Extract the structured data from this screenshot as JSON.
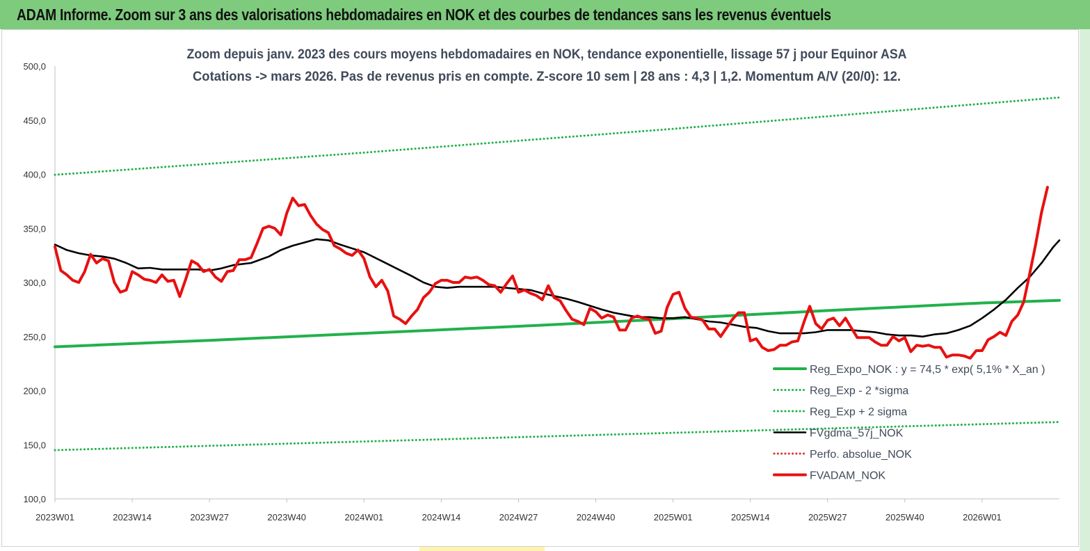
{
  "header": {
    "title": "ADAM Informe. Zoom sur 3 ans des valorisations hebdomadaires en NOK et des courbes de tendances sans les revenus éventuels"
  },
  "chart_data": {
    "type": "line",
    "title_line1": "Zoom depuis janv. 2023 des cours moyens hebdomadaires en NOK, tendance exponentielle, lissage 57 j pour Equinor ASA",
    "title_line2": "Cotations -> mars 2026. Pas de revenus pris en compte. Z-score 10 sem | 28 ans : 4,3 | 1,2. Momentum A/V (20/0): 12.",
    "ylim": [
      100,
      500
    ],
    "y_ticks": [
      "500,0",
      "450,0",
      "400,0",
      "350,0",
      "300,0",
      "250,0",
      "200,0",
      "150,0",
      "100,0"
    ],
    "x_range": [
      0,
      169
    ],
    "x_ticks": [
      {
        "label": "2023W01",
        "x": 0
      },
      {
        "label": "2023W14",
        "x": 13
      },
      {
        "label": "2023W27",
        "x": 26
      },
      {
        "label": "2023W40",
        "x": 39
      },
      {
        "label": "2024W01",
        "x": 52
      },
      {
        "label": "2024W14",
        "x": 65
      },
      {
        "label": "2024W27",
        "x": 78
      },
      {
        "label": "2024W40",
        "x": 91
      },
      {
        "label": "2025W01",
        "x": 104
      },
      {
        "label": "2025W14",
        "x": 117
      },
      {
        "label": "2025W27",
        "x": 130
      },
      {
        "label": "2025W40",
        "x": 143
      },
      {
        "label": "2026W01",
        "x": 156
      }
    ],
    "grid": false,
    "legend_position": "bottom-right",
    "series": [
      {
        "name": "Reg_Expo_NOK : y = 74,5 * exp( 5,1% *  X_an )",
        "color": "#22b14c",
        "style": "solid-thick",
        "points": [
          [
            0,
            240.5
          ],
          [
            26,
            246.5
          ],
          [
            52,
            253
          ],
          [
            78,
            259.5
          ],
          [
            104,
            266.5
          ],
          [
            130,
            274
          ],
          [
            156,
            281
          ],
          [
            169,
            283.5
          ]
        ]
      },
      {
        "name": "Reg_Exp - 2 *sigma",
        "color": "#22b14c",
        "style": "dotted",
        "points": [
          [
            0,
            145
          ],
          [
            52,
            153
          ],
          [
            104,
            161
          ],
          [
            169,
            171
          ]
        ]
      },
      {
        "name": "Reg_Exp + 2 sigma",
        "color": "#22b14c",
        "style": "dotted",
        "points": [
          [
            0,
            399.5
          ],
          [
            52,
            420
          ],
          [
            104,
            442
          ],
          [
            169,
            471
          ]
        ]
      },
      {
        "name": "FVgdma_57j_NOK",
        "color": "#000000",
        "style": "solid",
        "points": [
          [
            0,
            335
          ],
          [
            2,
            330
          ],
          [
            4,
            327
          ],
          [
            6,
            325
          ],
          [
            8,
            324
          ],
          [
            10,
            322
          ],
          [
            12,
            318
          ],
          [
            14,
            313
          ],
          [
            16,
            313.5
          ],
          [
            18,
            312
          ],
          [
            21,
            312
          ],
          [
            24,
            312
          ],
          [
            26,
            311
          ],
          [
            28,
            313
          ],
          [
            30,
            316
          ],
          [
            33,
            318
          ],
          [
            36,
            324
          ],
          [
            38,
            330
          ],
          [
            40,
            334
          ],
          [
            42,
            337
          ],
          [
            44,
            340
          ],
          [
            46,
            339
          ],
          [
            48,
            335
          ],
          [
            52,
            328
          ],
          [
            56,
            317
          ],
          [
            60,
            306
          ],
          [
            62,
            300
          ],
          [
            64,
            296
          ],
          [
            66,
            295
          ],
          [
            68,
            296
          ],
          [
            70,
            296
          ],
          [
            74,
            296
          ],
          [
            76,
            295
          ],
          [
            80,
            293
          ],
          [
            82,
            290
          ],
          [
            86,
            285
          ],
          [
            88,
            282
          ],
          [
            92,
            275
          ],
          [
            94,
            272
          ],
          [
            96,
            270
          ],
          [
            98,
            268
          ],
          [
            100,
            268
          ],
          [
            102,
            267
          ],
          [
            104,
            267
          ],
          [
            106,
            268
          ],
          [
            108,
            266
          ],
          [
            110,
            264
          ],
          [
            112,
            263
          ],
          [
            114,
            261
          ],
          [
            116,
            259
          ],
          [
            118,
            258
          ],
          [
            120,
            255
          ],
          [
            122,
            253
          ],
          [
            126,
            253
          ],
          [
            128,
            254
          ],
          [
            130,
            256
          ],
          [
            132,
            256
          ],
          [
            134,
            256
          ],
          [
            136,
            255
          ],
          [
            138,
            254
          ],
          [
            140,
            252
          ],
          [
            142,
            251
          ],
          [
            144,
            251
          ],
          [
            146,
            250
          ],
          [
            148,
            252
          ],
          [
            150,
            253
          ],
          [
            152,
            256
          ],
          [
            154,
            260
          ],
          [
            156,
            267
          ],
          [
            158,
            275
          ],
          [
            160,
            284
          ],
          [
            162,
            295
          ],
          [
            164,
            305
          ],
          [
            166,
            318
          ],
          [
            168,
            333
          ],
          [
            169,
            339
          ]
        ]
      },
      {
        "name": "Perfo. absolue_NOK",
        "color": "#e03030",
        "style": "dotted",
        "points": []
      },
      {
        "name": "FVADAM_NOK",
        "color": "#e81010",
        "style": "solid-thick",
        "points": [
          [
            0,
            333
          ],
          [
            1,
            311
          ],
          [
            2,
            307
          ],
          [
            3,
            302
          ],
          [
            4,
            300
          ],
          [
            5,
            310
          ],
          [
            6,
            326
          ],
          [
            7,
            318
          ],
          [
            8,
            322
          ],
          [
            9,
            320
          ],
          [
            10,
            300
          ],
          [
            11,
            291
          ],
          [
            12,
            293
          ],
          [
            13,
            310
          ],
          [
            14,
            307
          ],
          [
            15,
            303
          ],
          [
            16,
            302
          ],
          [
            17,
            300
          ],
          [
            18,
            307
          ],
          [
            19,
            301
          ],
          [
            20,
            302
          ],
          [
            21,
            287
          ],
          [
            22,
            303
          ],
          [
            23,
            320
          ],
          [
            24,
            317
          ],
          [
            25,
            310
          ],
          [
            26,
            312
          ],
          [
            27,
            305
          ],
          [
            28,
            301
          ],
          [
            29,
            310
          ],
          [
            30,
            311
          ],
          [
            31,
            321
          ],
          [
            32,
            321
          ],
          [
            33,
            323
          ],
          [
            34,
            336
          ],
          [
            35,
            350
          ],
          [
            36,
            352
          ],
          [
            37,
            350
          ],
          [
            38,
            344
          ],
          [
            39,
            364
          ],
          [
            40,
            378
          ],
          [
            41,
            371
          ],
          [
            42,
            372
          ],
          [
            43,
            362
          ],
          [
            44,
            354
          ],
          [
            45,
            349
          ],
          [
            46,
            346
          ],
          [
            47,
            334
          ],
          [
            48,
            331
          ],
          [
            49,
            327
          ],
          [
            50,
            325
          ],
          [
            51,
            330
          ],
          [
            52,
            322
          ],
          [
            53,
            305
          ],
          [
            54,
            296
          ],
          [
            55,
            302
          ],
          [
            56,
            292
          ],
          [
            57,
            269
          ],
          [
            58,
            266
          ],
          [
            59,
            262
          ],
          [
            60,
            269
          ],
          [
            61,
            275
          ],
          [
            62,
            286
          ],
          [
            63,
            291
          ],
          [
            64,
            299
          ],
          [
            65,
            302
          ],
          [
            66,
            302
          ],
          [
            67,
            300
          ],
          [
            68,
            300
          ],
          [
            69,
            305
          ],
          [
            70,
            304
          ],
          [
            71,
            305
          ],
          [
            72,
            302
          ],
          [
            73,
            298
          ],
          [
            74,
            297
          ],
          [
            75,
            291
          ],
          [
            76,
            299
          ],
          [
            77,
            306
          ],
          [
            78,
            291
          ],
          [
            79,
            293
          ],
          [
            80,
            290
          ],
          [
            81,
            288
          ],
          [
            82,
            284
          ],
          [
            83,
            297
          ],
          [
            84,
            286
          ],
          [
            85,
            283
          ],
          [
            86,
            274
          ],
          [
            87,
            266
          ],
          [
            88,
            264
          ],
          [
            89,
            261
          ],
          [
            90,
            276
          ],
          [
            91,
            273
          ],
          [
            92,
            267
          ],
          [
            93,
            270
          ],
          [
            94,
            268
          ],
          [
            95,
            256
          ],
          [
            96,
            256
          ],
          [
            97,
            267
          ],
          [
            98,
            269
          ],
          [
            99,
            267
          ],
          [
            100,
            266
          ],
          [
            101,
            253
          ],
          [
            102,
            255
          ],
          [
            103,
            277
          ],
          [
            104,
            289
          ],
          [
            105,
            291
          ],
          [
            106,
            276
          ],
          [
            107,
            268
          ],
          [
            108,
            267
          ],
          [
            109,
            265
          ],
          [
            110,
            257
          ],
          [
            111,
            257
          ],
          [
            112,
            250
          ],
          [
            113,
            258
          ],
          [
            114,
            266
          ],
          [
            115,
            272
          ],
          [
            116,
            272
          ],
          [
            117,
            246
          ],
          [
            118,
            248
          ],
          [
            119,
            240
          ],
          [
            120,
            237
          ],
          [
            121,
            238
          ],
          [
            122,
            242
          ],
          [
            123,
            242
          ],
          [
            124,
            245
          ],
          [
            125,
            246
          ],
          [
            126,
            263
          ],
          [
            127,
            278
          ],
          [
            128,
            262
          ],
          [
            129,
            257
          ],
          [
            130,
            265
          ],
          [
            131,
            267
          ],
          [
            132,
            260
          ],
          [
            133,
            267
          ],
          [
            134,
            258
          ],
          [
            135,
            249
          ],
          [
            136,
            249
          ],
          [
            137,
            249
          ],
          [
            138,
            245
          ],
          [
            139,
            242
          ],
          [
            140,
            242
          ],
          [
            141,
            250
          ],
          [
            142,
            246
          ],
          [
            143,
            249
          ],
          [
            144,
            236
          ],
          [
            145,
            242
          ],
          [
            146,
            241
          ],
          [
            147,
            242
          ],
          [
            148,
            240
          ],
          [
            149,
            240
          ],
          [
            150,
            231
          ],
          [
            151,
            233
          ],
          [
            152,
            233
          ],
          [
            153,
            232
          ],
          [
            154,
            230
          ],
          [
            155,
            237
          ],
          [
            156,
            237
          ],
          [
            157,
            247
          ],
          [
            158,
            250
          ],
          [
            159,
            254
          ],
          [
            160,
            251
          ],
          [
            161,
            264
          ],
          [
            162,
            270
          ],
          [
            163,
            282
          ],
          [
            164,
            308
          ],
          [
            165,
            335
          ],
          [
            166,
            365
          ],
          [
            167,
            388
          ]
        ]
      }
    ]
  }
}
